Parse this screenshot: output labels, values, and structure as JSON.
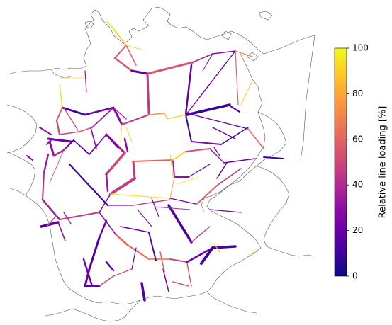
{
  "colorbar": {
    "label": "Relative line loading [%]",
    "ticks": [
      "0",
      "20",
      "40",
      "60",
      "80",
      "100"
    ],
    "range": [
      0,
      100
    ],
    "colormap": "plasma",
    "colormap_stops": [
      "#0d0887",
      "#41049d",
      "#6a00a8",
      "#8f0da4",
      "#b12a90",
      "#cc4778",
      "#e16462",
      "#f2844b",
      "#fca636",
      "#fcce25",
      "#f0f921"
    ]
  },
  "chart_data": {
    "type": "map",
    "region": "Germany transmission grid",
    "encoding": "line color and width by relative line loading (%)",
    "colorbar_range": [
      0,
      100
    ],
    "colors": {
      "coastline": "#555555",
      "background": "#ffffff"
    }
  }
}
